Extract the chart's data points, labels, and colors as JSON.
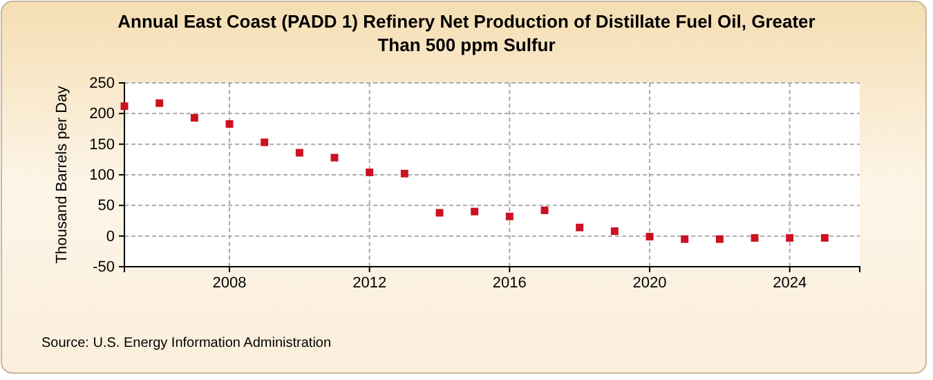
{
  "chart_data": {
    "type": "scatter",
    "title": "Annual East Coast (PADD 1) Refinery Net Production of Distillate Fuel Oil, Greater Than 500 ppm Sulfur",
    "ylabel": "Thousand Barrels per Day",
    "annotations": [
      "Source: U.S. Energy Information Administration"
    ],
    "x": [
      2005,
      2006,
      2007,
      2008,
      2009,
      2010,
      2011,
      2012,
      2013,
      2014,
      2015,
      2016,
      2017,
      2018,
      2019,
      2020,
      2021,
      2022,
      2023,
      2024,
      2025
    ],
    "series": [
      {
        "color": "#cc1122",
        "values": [
          212,
          217,
          193,
          183,
          153,
          136,
          128,
          104,
          102,
          38,
          40,
          32,
          42,
          14,
          8,
          -1,
          -5,
          -5,
          -3,
          -3,
          -3
        ]
      }
    ],
    "xlim": [
      2005,
      2026
    ],
    "xticks": [
      2008,
      2012,
      2016,
      2020,
      2024
    ],
    "ylim": [
      -50,
      250
    ],
    "yticks": [
      -50,
      0,
      50,
      100,
      150,
      200,
      250
    ],
    "grid": true,
    "marker": "square"
  }
}
